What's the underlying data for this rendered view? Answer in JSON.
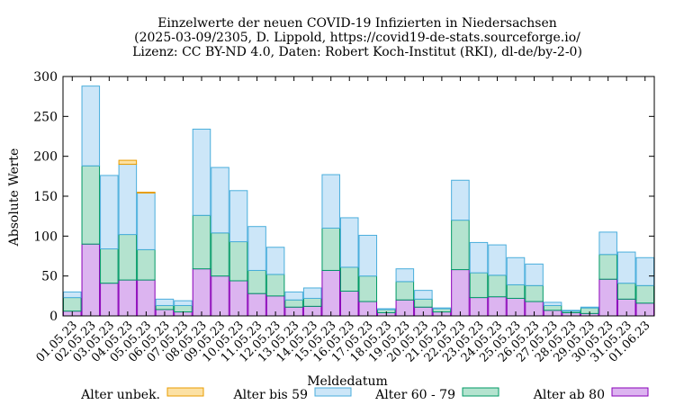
{
  "chart_data": {
    "type": "bar",
    "stacked": true,
    "title_lines": [
      "Einzelwerte der neuen COVID-19 Infizierten in Niedersachsen",
      "(2025-03-09/2305, D. Lippold, https://covid19-de-stats.sourceforge.io/",
      "Lizenz: CC BY-ND 4.0, Daten: Robert Koch-Institut (RKI), dl-de/by-2-0)"
    ],
    "xlabel": "Meldedatum",
    "ylabel": "Absolute Werte",
    "ylim": [
      0,
      300
    ],
    "yticks": [
      0,
      50,
      100,
      150,
      200,
      250,
      300
    ],
    "grid": false,
    "legend_position": "bottom",
    "categories": [
      "01.05.23",
      "02.05.23",
      "03.05.23",
      "04.05.23",
      "05.05.23",
      "06.05.23",
      "07.05.23",
      "08.05.23",
      "09.05.23",
      "10.05.23",
      "11.05.23",
      "12.05.23",
      "13.05.23",
      "14.05.23",
      "15.05.23",
      "16.05.23",
      "17.05.23",
      "18.05.23",
      "19.05.23",
      "20.05.23",
      "21.05.23",
      "22.05.23",
      "23.05.23",
      "24.05.23",
      "25.05.23",
      "26.05.23",
      "27.05.23",
      "28.05.23",
      "29.05.23",
      "30.05.23",
      "31.05.23",
      "01.06.23"
    ],
    "series": [
      {
        "name": "Alter ab 80",
        "fill": "#dcb4f0",
        "stroke": "#8a00b8",
        "values": [
          6,
          90,
          41,
          45,
          45,
          8,
          5,
          59,
          50,
          44,
          28,
          25,
          11,
          12,
          57,
          31,
          18,
          4,
          20,
          11,
          5,
          58,
          23,
          24,
          22,
          18,
          7,
          4,
          3,
          46,
          21,
          16
        ]
      },
      {
        "name": "Alter 60 - 79",
        "fill": "#b4e3cf",
        "stroke": "#009966",
        "values": [
          17,
          98,
          43,
          57,
          38,
          5,
          8,
          67,
          54,
          49,
          29,
          27,
          9,
          10,
          53,
          30,
          32,
          4,
          23,
          10,
          4,
          62,
          31,
          27,
          17,
          20,
          6,
          2,
          7,
          31,
          20,
          22
        ]
      },
      {
        "name": "Alter bis 59",
        "fill": "#cce6f8",
        "stroke": "#4aaedc",
        "values": [
          7,
          100,
          92,
          88,
          71,
          8,
          6,
          108,
          82,
          64,
          55,
          34,
          10,
          13,
          67,
          62,
          51,
          1,
          16,
          11,
          1,
          50,
          38,
          38,
          34,
          27,
          4,
          1,
          1,
          28,
          39,
          35
        ]
      },
      {
        "name": "Alter unbek.",
        "fill": "#fce1a4",
        "stroke": "#e89c00",
        "values": [
          0,
          0,
          0,
          5,
          1,
          0,
          0,
          0,
          0,
          0,
          0,
          0,
          0,
          0,
          0,
          0,
          0,
          0,
          0,
          0,
          0,
          0,
          0,
          0,
          0,
          0,
          0,
          0,
          0,
          0,
          0,
          0
        ]
      }
    ],
    "legend_order": [
      "Alter unbek.",
      "Alter bis 59",
      "Alter 60 - 79",
      "Alter ab 80"
    ]
  }
}
